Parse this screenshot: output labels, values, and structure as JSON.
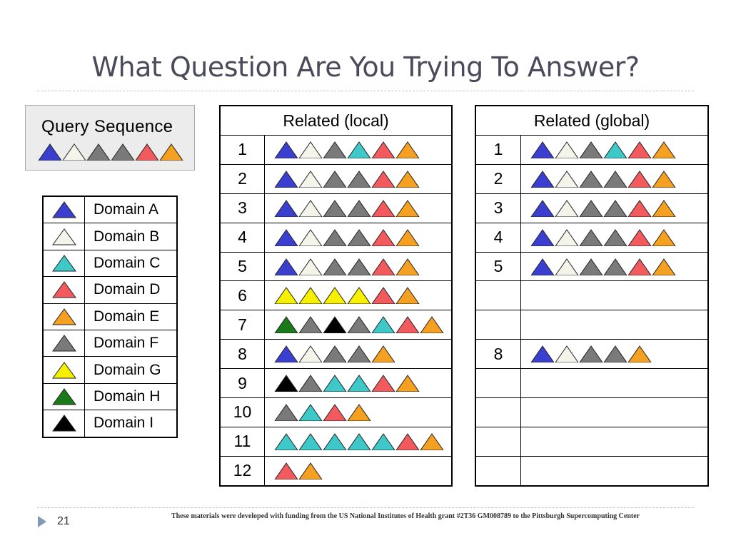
{
  "slide": {
    "title": "What Question Are You Trying To Answer?",
    "page_number": "21",
    "footer": "These materials were developed with funding from the US National Institutes of Health grant #2T36 GM008789 to the Pittsburgh Supercomputing Center"
  },
  "colors": {
    "A": "#3a3fcf",
    "B": "#f4f4ea",
    "C": "#3ec8c8",
    "D": "#f25a5e",
    "E": "#f5a020",
    "F": "#7a7a7a",
    "G": "#f7f000",
    "H": "#1a7a1a",
    "I": "#000000",
    "accent_arrow": "#7f9ab6"
  },
  "query": {
    "label": "Query Sequence",
    "sequence": [
      "A",
      "B",
      "F",
      "F",
      "D",
      "E"
    ]
  },
  "legend": [
    {
      "key": "A",
      "label": "Domain A"
    },
    {
      "key": "B",
      "label": "Domain B"
    },
    {
      "key": "C",
      "label": "Domain C"
    },
    {
      "key": "D",
      "label": "Domain D"
    },
    {
      "key": "E",
      "label": "Domain E"
    },
    {
      "key": "F",
      "label": "Domain F"
    },
    {
      "key": "G",
      "label": "Domain G"
    },
    {
      "key": "H",
      "label": "Domain H"
    },
    {
      "key": "I",
      "label": "Domain I"
    }
  ],
  "local": {
    "header": "Related (local)",
    "rows": [
      {
        "n": "1",
        "seq": [
          "A",
          "B",
          "F",
          "C",
          "D",
          "E"
        ]
      },
      {
        "n": "2",
        "seq": [
          "A",
          "B",
          "F",
          "F",
          "D",
          "E"
        ]
      },
      {
        "n": "3",
        "seq": [
          "A",
          "B",
          "F",
          "F",
          "D",
          "E"
        ]
      },
      {
        "n": "4",
        "seq": [
          "A",
          "B",
          "F",
          "F",
          "D",
          "E"
        ]
      },
      {
        "n": "5",
        "seq": [
          "A",
          "B",
          "F",
          "F",
          "D",
          "E"
        ]
      },
      {
        "n": "6",
        "seq": [
          "G",
          "G",
          "G",
          "G",
          "D",
          "E"
        ]
      },
      {
        "n": "7",
        "seq": [
          "H",
          "F",
          "I",
          "F",
          "C",
          "D",
          "E"
        ]
      },
      {
        "n": "8",
        "seq": [
          "A",
          "B",
          "F",
          "F",
          "E"
        ]
      },
      {
        "n": "9",
        "seq": [
          "I",
          "F",
          "C",
          "C",
          "D",
          "E"
        ]
      },
      {
        "n": "10",
        "seq": [
          "F",
          "C",
          "D",
          "E"
        ]
      },
      {
        "n": "11",
        "seq": [
          "C",
          "C",
          "C",
          "C",
          "C",
          "D",
          "E"
        ]
      },
      {
        "n": "12",
        "seq": [
          "D",
          "E"
        ]
      }
    ]
  },
  "global": {
    "header": "Related (global)",
    "rows": [
      {
        "n": "1",
        "seq": [
          "A",
          "B",
          "F",
          "C",
          "D",
          "E"
        ]
      },
      {
        "n": "2",
        "seq": [
          "A",
          "B",
          "F",
          "F",
          "D",
          "E"
        ]
      },
      {
        "n": "3",
        "seq": [
          "A",
          "B",
          "F",
          "F",
          "D",
          "E"
        ]
      },
      {
        "n": "4",
        "seq": [
          "A",
          "B",
          "F",
          "F",
          "D",
          "E"
        ]
      },
      {
        "n": "5",
        "seq": [
          "A",
          "B",
          "F",
          "F",
          "D",
          "E"
        ]
      },
      {
        "n": "",
        "seq": []
      },
      {
        "n": "",
        "seq": []
      },
      {
        "n": "8",
        "seq": [
          "A",
          "B",
          "F",
          "F",
          "E"
        ]
      },
      {
        "n": "",
        "seq": []
      },
      {
        "n": "",
        "seq": []
      },
      {
        "n": "",
        "seq": []
      },
      {
        "n": "",
        "seq": []
      }
    ]
  }
}
